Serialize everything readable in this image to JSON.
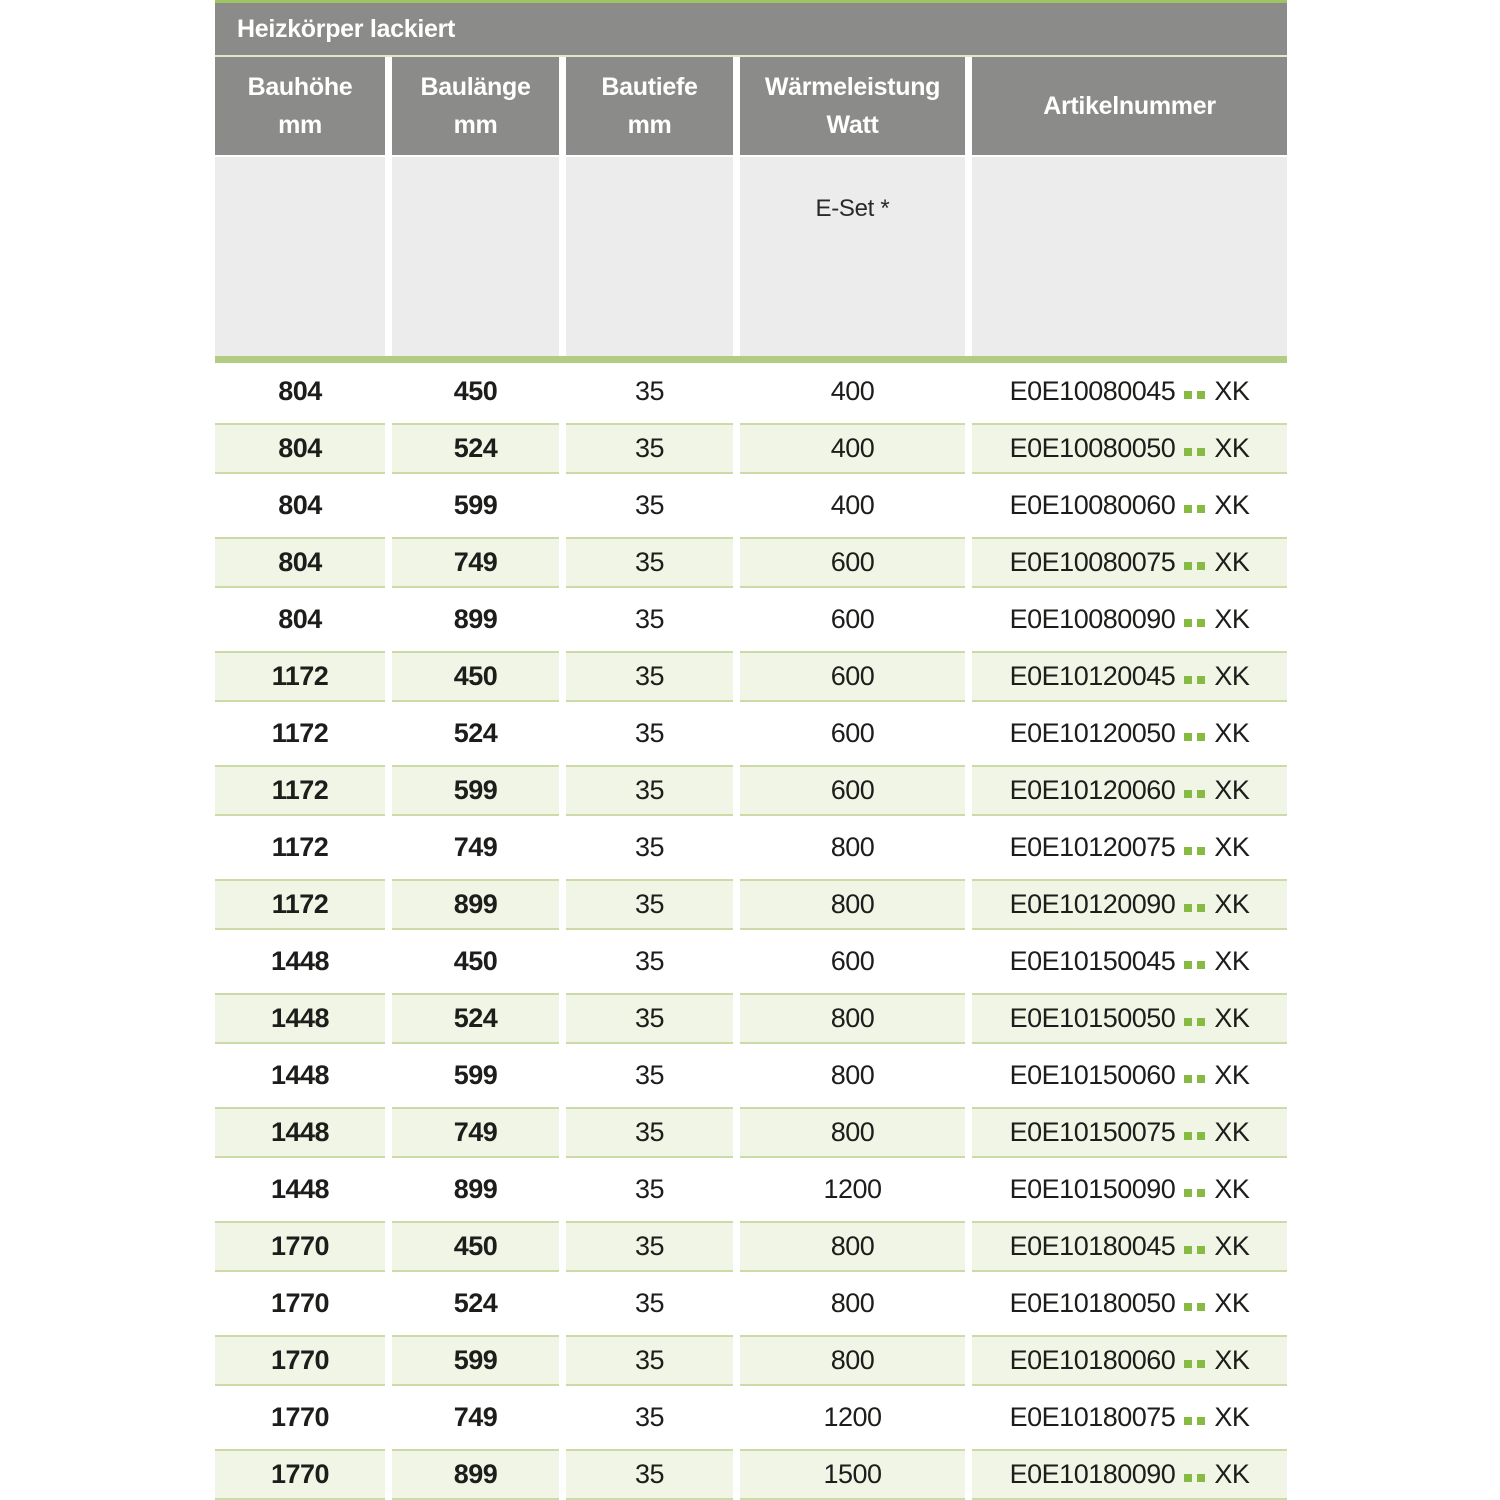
{
  "title": "Heizkörper lackiert",
  "columns": [
    {
      "line1": "Bauhöhe",
      "line2": "mm"
    },
    {
      "line1": "Baulänge",
      "line2": "mm"
    },
    {
      "line1": "Bautiefe",
      "line2": "mm"
    },
    {
      "line1": "Wärmeleistung",
      "line2": "Watt"
    },
    {
      "line1": "Artikelnummer",
      "line2": ""
    }
  ],
  "sub_header": {
    "e_set_label": "E-Set *"
  },
  "rows": [
    {
      "bauhoehe": "804",
      "baulaenge": "450",
      "bautiefe": "35",
      "watt": "400",
      "artikel_prefix": "E0E10080045",
      "artikel_suffix": "XK"
    },
    {
      "bauhoehe": "804",
      "baulaenge": "524",
      "bautiefe": "35",
      "watt": "400",
      "artikel_prefix": "E0E10080050",
      "artikel_suffix": "XK"
    },
    {
      "bauhoehe": "804",
      "baulaenge": "599",
      "bautiefe": "35",
      "watt": "400",
      "artikel_prefix": "E0E10080060",
      "artikel_suffix": "XK"
    },
    {
      "bauhoehe": "804",
      "baulaenge": "749",
      "bautiefe": "35",
      "watt": "600",
      "artikel_prefix": "E0E10080075",
      "artikel_suffix": "XK"
    },
    {
      "bauhoehe": "804",
      "baulaenge": "899",
      "bautiefe": "35",
      "watt": "600",
      "artikel_prefix": "E0E10080090",
      "artikel_suffix": "XK"
    },
    {
      "bauhoehe": "1172",
      "baulaenge": "450",
      "bautiefe": "35",
      "watt": "600",
      "artikel_prefix": "E0E10120045",
      "artikel_suffix": "XK"
    },
    {
      "bauhoehe": "1172",
      "baulaenge": "524",
      "bautiefe": "35",
      "watt": "600",
      "artikel_prefix": "E0E10120050",
      "artikel_suffix": "XK"
    },
    {
      "bauhoehe": "1172",
      "baulaenge": "599",
      "bautiefe": "35",
      "watt": "600",
      "artikel_prefix": "E0E10120060",
      "artikel_suffix": "XK"
    },
    {
      "bauhoehe": "1172",
      "baulaenge": "749",
      "bautiefe": "35",
      "watt": "800",
      "artikel_prefix": "E0E10120075",
      "artikel_suffix": "XK"
    },
    {
      "bauhoehe": "1172",
      "baulaenge": "899",
      "bautiefe": "35",
      "watt": "800",
      "artikel_prefix": "E0E10120090",
      "artikel_suffix": "XK"
    },
    {
      "bauhoehe": "1448",
      "baulaenge": "450",
      "bautiefe": "35",
      "watt": "600",
      "artikel_prefix": "E0E10150045",
      "artikel_suffix": "XK"
    },
    {
      "bauhoehe": "1448",
      "baulaenge": "524",
      "bautiefe": "35",
      "watt": "800",
      "artikel_prefix": "E0E10150050",
      "artikel_suffix": "XK"
    },
    {
      "bauhoehe": "1448",
      "baulaenge": "599",
      "bautiefe": "35",
      "watt": "800",
      "artikel_prefix": "E0E10150060",
      "artikel_suffix": "XK"
    },
    {
      "bauhoehe": "1448",
      "baulaenge": "749",
      "bautiefe": "35",
      "watt": "800",
      "artikel_prefix": "E0E10150075",
      "artikel_suffix": "XK"
    },
    {
      "bauhoehe": "1448",
      "baulaenge": "899",
      "bautiefe": "35",
      "watt": "1200",
      "artikel_prefix": "E0E10150090",
      "artikel_suffix": "XK"
    },
    {
      "bauhoehe": "1770",
      "baulaenge": "450",
      "bautiefe": "35",
      "watt": "800",
      "artikel_prefix": "E0E10180045",
      "artikel_suffix": "XK"
    },
    {
      "bauhoehe": "1770",
      "baulaenge": "524",
      "bautiefe": "35",
      "watt": "800",
      "artikel_prefix": "E0E10180050",
      "artikel_suffix": "XK"
    },
    {
      "bauhoehe": "1770",
      "baulaenge": "599",
      "bautiefe": "35",
      "watt": "800",
      "artikel_prefix": "E0E10180060",
      "artikel_suffix": "XK"
    },
    {
      "bauhoehe": "1770",
      "baulaenge": "749",
      "bautiefe": "35",
      "watt": "1200",
      "artikel_prefix": "E0E10180075",
      "artikel_suffix": "XK"
    },
    {
      "bauhoehe": "1770",
      "baulaenge": "899",
      "bautiefe": "35",
      "watt": "1500",
      "artikel_prefix": "E0E10180090",
      "artikel_suffix": "XK"
    }
  ],
  "colors": {
    "header_gray": "#8b8b89",
    "sub_header_gray": "#ececec",
    "top_line_green": "#9fc463",
    "thick_line_green": "#b2cd83",
    "alt_row_fill": "#f0f5e6",
    "alt_row_border": "#cbdaa6",
    "dot_green": "#86ba43",
    "text_dark": "#1d1d1b"
  }
}
